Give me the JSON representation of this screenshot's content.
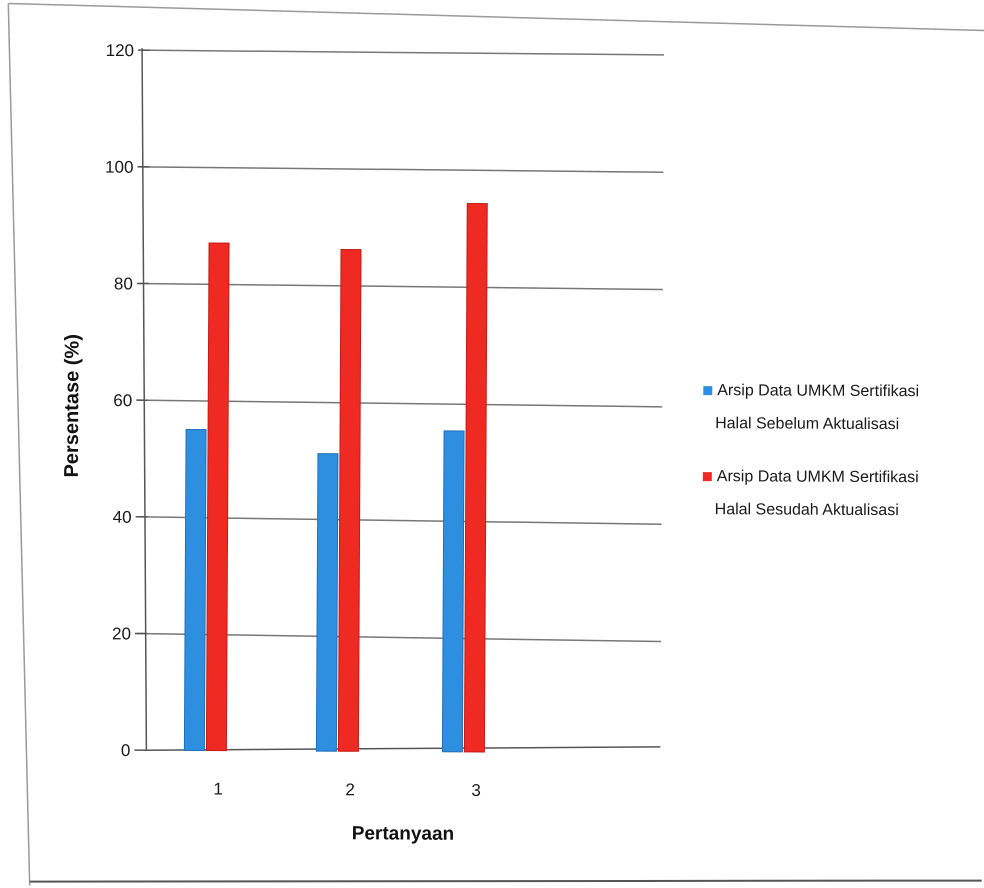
{
  "chart_data": {
    "type": "bar",
    "xlabel": "Pertanyaan",
    "ylabel": "Persentase (%)",
    "categories": [
      "1",
      "2",
      "3"
    ],
    "ylim": [
      0,
      120
    ],
    "yticks": [
      0,
      20,
      40,
      60,
      80,
      100,
      120
    ],
    "grid": true,
    "legend_position": "right",
    "series": [
      {
        "name": "Arsip Data UMKM Sertifikasi Halal Sebelum Aktualisasi",
        "legend_lines": [
          "Arsip Data UMKM Sertifikasi",
          "Halal Sebelum Aktualisasi"
        ],
        "color": "#2e8fe0",
        "values": [
          55,
          51,
          55
        ]
      },
      {
        "name": "Arsip Data UMKM Sertifikasi Halal Sesudah Aktualisasi",
        "legend_lines": [
          "Arsip Data UMKM Sertifikasi",
          "Halal Sesudah Aktualisasi"
        ],
        "color": "#ee2a22",
        "values": [
          87,
          86,
          94
        ]
      }
    ]
  }
}
